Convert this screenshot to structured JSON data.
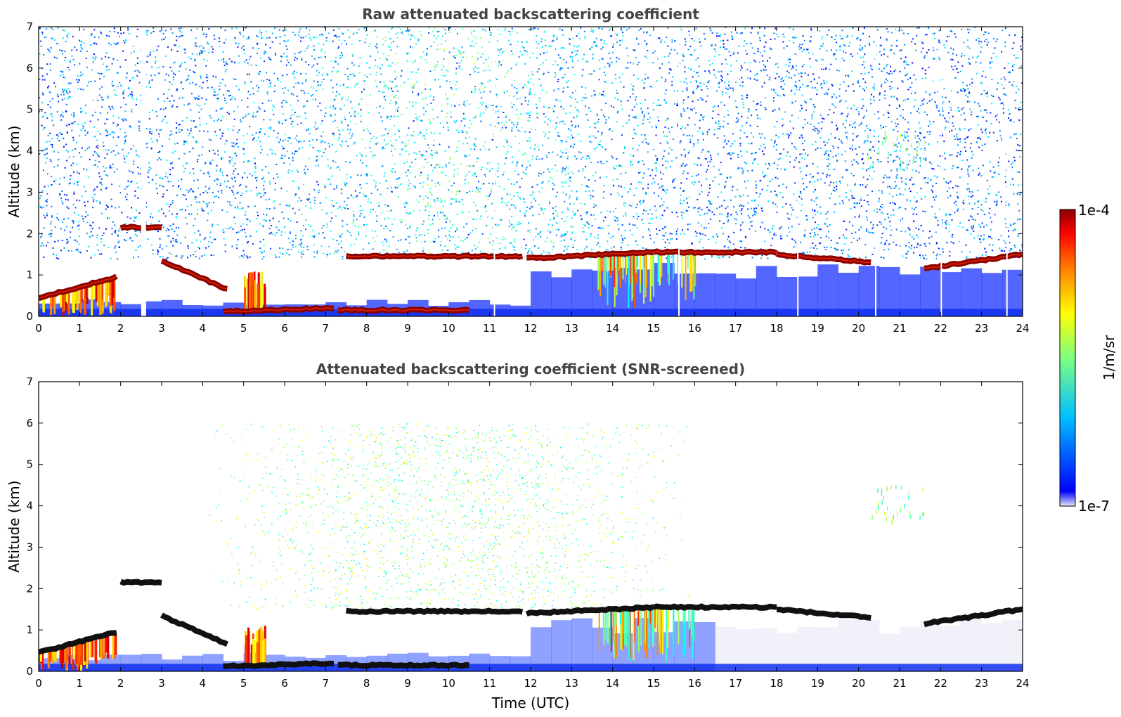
{
  "chart_data": [
    {
      "type": "heatmap",
      "title": "Raw attenuated backscattering coefficient",
      "xlabel": "",
      "ylabel": "Altitude (km)",
      "xlim": [
        0,
        24
      ],
      "ylim": [
        0,
        7
      ],
      "xticks": [
        "0",
        "1",
        "2",
        "3",
        "4",
        "5",
        "6",
        "7",
        "8",
        "9",
        "10",
        "11",
        "12",
        "13",
        "14",
        "15",
        "16",
        "17",
        "18",
        "19",
        "20",
        "21",
        "22",
        "23",
        "24"
      ],
      "yticks": [
        "0",
        "1",
        "2",
        "3",
        "4",
        "5",
        "6",
        "7"
      ],
      "screened": false,
      "cloud_layers": [
        {
          "t0": 0.0,
          "t1": 1.9,
          "alt": [
            0.45,
            0.95
          ]
        },
        {
          "t0": 2.0,
          "t1": 3.0,
          "alt": [
            2.15,
            2.15
          ]
        },
        {
          "t0": 3.0,
          "t1": 4.6,
          "alt": [
            1.35,
            0.65
          ]
        },
        {
          "t0": 4.5,
          "t1": 7.2,
          "alt": [
            0.12,
            0.2
          ]
        },
        {
          "t0": 7.5,
          "t1": 11.8,
          "alt": [
            1.45,
            1.45
          ]
        },
        {
          "t0": 7.3,
          "t1": 10.5,
          "alt": [
            0.15,
            0.15
          ]
        },
        {
          "t0": 11.9,
          "t1": 15.0,
          "alt": [
            1.4,
            1.55
          ]
        },
        {
          "t0": 15.0,
          "t1": 18.0,
          "alt": [
            1.55,
            1.55
          ]
        },
        {
          "t0": 18.0,
          "t1": 20.3,
          "alt": [
            1.5,
            1.3
          ]
        },
        {
          "t0": 21.6,
          "t1": 24.0,
          "alt": [
            1.15,
            1.5
          ]
        }
      ]
    },
    {
      "type": "heatmap",
      "title": "Attenuated backscattering coefficient (SNR-screened)",
      "xlabel": "Time (UTC)",
      "ylabel": "Altitude (km)",
      "xlim": [
        0,
        24
      ],
      "ylim": [
        0,
        7
      ],
      "xticks": [
        "0",
        "1",
        "2",
        "3",
        "4",
        "5",
        "6",
        "7",
        "8",
        "9",
        "10",
        "11",
        "12",
        "13",
        "14",
        "15",
        "16",
        "17",
        "18",
        "19",
        "20",
        "21",
        "22",
        "23",
        "24"
      ],
      "yticks": [
        "0",
        "1",
        "2",
        "3",
        "4",
        "5",
        "6",
        "7"
      ],
      "screened": true,
      "cloud_layers": [
        {
          "t0": 0.0,
          "t1": 1.9,
          "alt": [
            0.45,
            0.95
          ]
        },
        {
          "t0": 2.0,
          "t1": 3.0,
          "alt": [
            2.15,
            2.15
          ]
        },
        {
          "t0": 3.0,
          "t1": 4.6,
          "alt": [
            1.35,
            0.65
          ]
        },
        {
          "t0": 4.5,
          "t1": 7.2,
          "alt": [
            0.12,
            0.2
          ]
        },
        {
          "t0": 7.5,
          "t1": 11.8,
          "alt": [
            1.45,
            1.45
          ]
        },
        {
          "t0": 7.3,
          "t1": 10.5,
          "alt": [
            0.15,
            0.15
          ]
        },
        {
          "t0": 11.9,
          "t1": 15.0,
          "alt": [
            1.4,
            1.55
          ]
        },
        {
          "t0": 15.0,
          "t1": 18.0,
          "alt": [
            1.55,
            1.55
          ]
        },
        {
          "t0": 18.0,
          "t1": 20.3,
          "alt": [
            1.5,
            1.3
          ]
        },
        {
          "t0": 21.6,
          "t1": 24.0,
          "alt": [
            1.15,
            1.5
          ]
        }
      ]
    }
  ],
  "colorbar": {
    "max_label": "1e-4",
    "min_label": "1e-7",
    "unit_label": "1/m/sr",
    "colormap": "jet",
    "colors": [
      "#e6e6f5",
      "#0000ff",
      "#00bfff",
      "#7fff7f",
      "#ffff00",
      "#ff7f00",
      "#ff0000",
      "#8b0000"
    ]
  }
}
